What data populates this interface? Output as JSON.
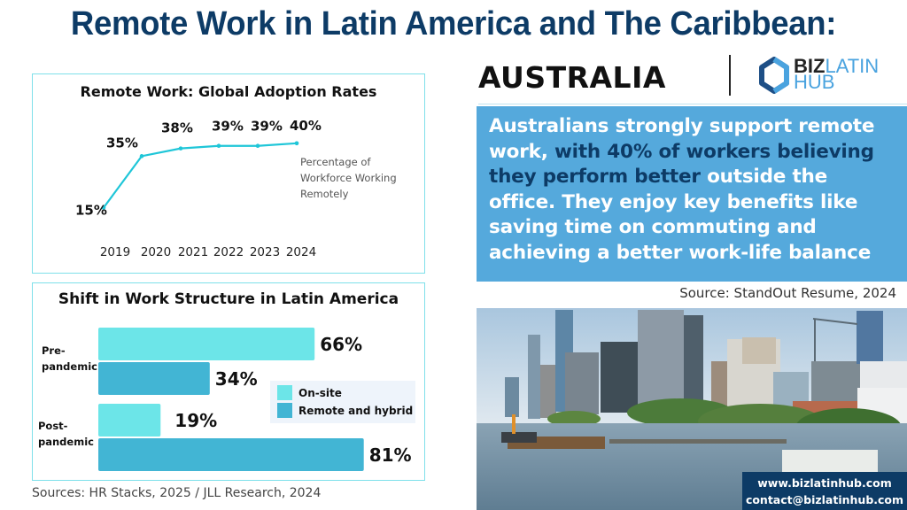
{
  "header": {
    "title": "Remote Work in Latin America and The Caribbean:",
    "country": "AUSTRALIA",
    "logo": {
      "icon": "bizlatinhub-logo-icon",
      "word1": "BIZ",
      "word2": "LATIN",
      "word3": "HUB"
    }
  },
  "colors": {
    "title": "#0d3b66",
    "panel_border": "#7fe0ea",
    "line": "#1fc6d8",
    "onsite": "#6ce5e8",
    "remote": "#42b5d4",
    "quote_bg": "#55a9dc",
    "quote_highlight": "#0d3b66",
    "contact_bg": "#0d3b66"
  },
  "quote": {
    "part1": "Australians strongly support remote work, ",
    "highlight": "with 40% of workers believing they perform better",
    "part2": " outside the office. They enjoy key benefits like saving time on commuting and achieving a better work-life balance",
    "source": "Source: StandOut Resume, 2024"
  },
  "sources_left": "Sources: HR Stacks, 2025 /  JLL Research, 2024",
  "contact": {
    "website": "www.bizlatinhub.com",
    "email": "contact@bizlatinhub.com"
  },
  "photo": {
    "description": "city-skyline-river-photo"
  },
  "chart_data": [
    {
      "type": "line",
      "title": "Remote Work: Global Adoption Rates",
      "x": [
        "2019",
        "2020",
        "2021",
        "2022",
        "2023",
        "2024"
      ],
      "series": [
        {
          "name": "Percentage of Workforce Working Remotely",
          "values": [
            15,
            35,
            38,
            39,
            39,
            40
          ]
        }
      ],
      "data_labels": [
        "15%",
        "35%",
        "38%",
        "39%",
        "39%",
        "40%"
      ],
      "legend": [
        "Percentage of",
        "Workforce Working",
        "Remotely"
      ],
      "legend_position": "right",
      "xlabel": "",
      "ylabel": "",
      "ylim": [
        10,
        42
      ],
      "grid": false
    },
    {
      "type": "bar",
      "orientation": "horizontal",
      "title": "Shift in Work Structure in Latin America",
      "categories": [
        [
          "Pre-",
          "pandemic"
        ],
        [
          "Post-",
          "pandemic"
        ]
      ],
      "series": [
        {
          "name": "On-site",
          "values": [
            66,
            19
          ]
        },
        {
          "name": "Remote and hybrid",
          "values": [
            34,
            81
          ]
        }
      ],
      "value_suffix": "%",
      "xlim": [
        0,
        100
      ],
      "legend_position": "right",
      "grid": false
    }
  ]
}
